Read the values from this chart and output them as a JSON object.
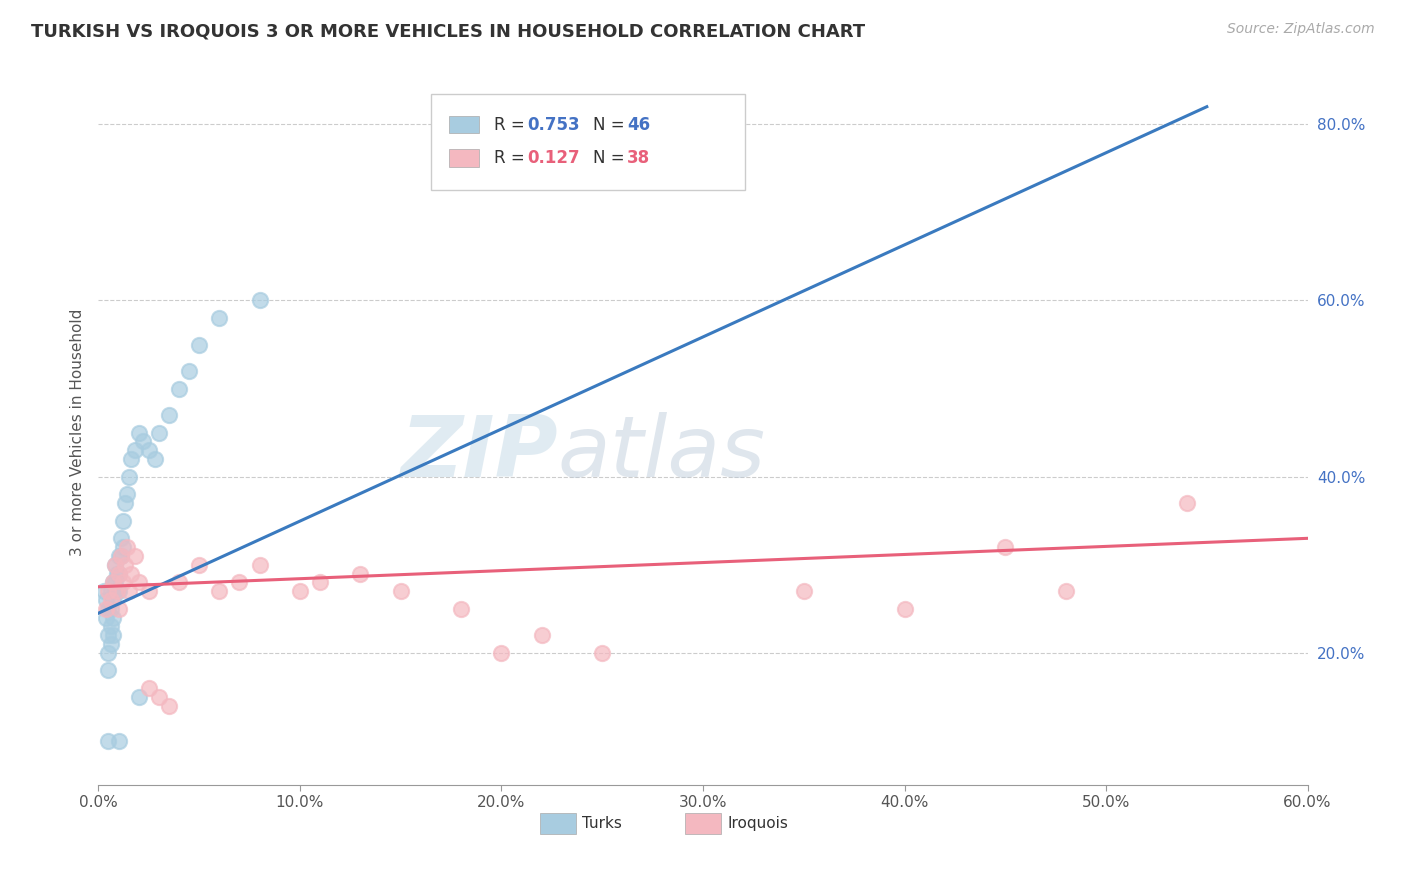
{
  "title": "TURKISH VS IROQUOIS 3 OR MORE VEHICLES IN HOUSEHOLD CORRELATION CHART",
  "source": "Source: ZipAtlas.com",
  "xlim": [
    0.0,
    0.6
  ],
  "ylim": [
    0.05,
    0.85
  ],
  "xlabel_ticks": [
    0.0,
    0.1,
    0.2,
    0.3,
    0.4,
    0.5,
    0.6
  ],
  "xlabel_labels": [
    "0.0%",
    "10.0%",
    "20.0%",
    "30.0%",
    "40.0%",
    "50.0%",
    "60.0%"
  ],
  "ylabel_ticks": [
    0.2,
    0.4,
    0.6,
    0.8
  ],
  "ylabel_labels": [
    "20.0%",
    "40.0%",
    "60.0%",
    "80.0%"
  ],
  "ylabel": "3 or more Vehicles in Household",
  "turks_color": "#a8cce0",
  "iroquois_color": "#f4b8c0",
  "turks_line_color": "#3a7abf",
  "iroquois_line_color": "#e8607a",
  "legend_r1": "0.753",
  "legend_n1": "46",
  "legend_r2": "0.127",
  "legend_n2": "38",
  "legend_val_color1": "#4472c4",
  "legend_val_color2": "#e8607a",
  "watermark_zip": "ZIP",
  "watermark_atlas": "atlas",
  "turks_scatter": [
    [
      0.003,
      0.27
    ],
    [
      0.004,
      0.24
    ],
    [
      0.004,
      0.26
    ],
    [
      0.005,
      0.25
    ],
    [
      0.005,
      0.22
    ],
    [
      0.005,
      0.2
    ],
    [
      0.005,
      0.18
    ],
    [
      0.006,
      0.27
    ],
    [
      0.006,
      0.25
    ],
    [
      0.006,
      0.23
    ],
    [
      0.006,
      0.21
    ],
    [
      0.007,
      0.28
    ],
    [
      0.007,
      0.26
    ],
    [
      0.007,
      0.24
    ],
    [
      0.007,
      0.22
    ],
    [
      0.008,
      0.3
    ],
    [
      0.008,
      0.28
    ],
    [
      0.008,
      0.27
    ],
    [
      0.009,
      0.29
    ],
    [
      0.009,
      0.27
    ],
    [
      0.01,
      0.31
    ],
    [
      0.01,
      0.29
    ],
    [
      0.01,
      0.27
    ],
    [
      0.011,
      0.33
    ],
    [
      0.011,
      0.31
    ],
    [
      0.012,
      0.35
    ],
    [
      0.012,
      0.32
    ],
    [
      0.013,
      0.37
    ],
    [
      0.014,
      0.38
    ],
    [
      0.015,
      0.4
    ],
    [
      0.016,
      0.42
    ],
    [
      0.018,
      0.43
    ],
    [
      0.02,
      0.45
    ],
    [
      0.022,
      0.44
    ],
    [
      0.025,
      0.43
    ],
    [
      0.028,
      0.42
    ],
    [
      0.03,
      0.45
    ],
    [
      0.035,
      0.47
    ],
    [
      0.04,
      0.5
    ],
    [
      0.045,
      0.52
    ],
    [
      0.05,
      0.55
    ],
    [
      0.06,
      0.58
    ],
    [
      0.08,
      0.6
    ],
    [
      0.01,
      0.1
    ],
    [
      0.005,
      0.1
    ],
    [
      0.02,
      0.15
    ]
  ],
  "iroquois_scatter": [
    [
      0.004,
      0.25
    ],
    [
      0.005,
      0.27
    ],
    [
      0.006,
      0.26
    ],
    [
      0.007,
      0.28
    ],
    [
      0.008,
      0.3
    ],
    [
      0.009,
      0.27
    ],
    [
      0.01,
      0.29
    ],
    [
      0.01,
      0.25
    ],
    [
      0.011,
      0.31
    ],
    [
      0.012,
      0.28
    ],
    [
      0.013,
      0.3
    ],
    [
      0.014,
      0.32
    ],
    [
      0.015,
      0.27
    ],
    [
      0.016,
      0.29
    ],
    [
      0.018,
      0.31
    ],
    [
      0.02,
      0.28
    ],
    [
      0.025,
      0.27
    ],
    [
      0.025,
      0.16
    ],
    [
      0.03,
      0.15
    ],
    [
      0.035,
      0.14
    ],
    [
      0.04,
      0.28
    ],
    [
      0.05,
      0.3
    ],
    [
      0.06,
      0.27
    ],
    [
      0.07,
      0.28
    ],
    [
      0.08,
      0.3
    ],
    [
      0.1,
      0.27
    ],
    [
      0.11,
      0.28
    ],
    [
      0.13,
      0.29
    ],
    [
      0.15,
      0.27
    ],
    [
      0.18,
      0.25
    ],
    [
      0.2,
      0.2
    ],
    [
      0.22,
      0.22
    ],
    [
      0.25,
      0.2
    ],
    [
      0.35,
      0.27
    ],
    [
      0.4,
      0.25
    ],
    [
      0.45,
      0.32
    ],
    [
      0.48,
      0.27
    ],
    [
      0.54,
      0.37
    ]
  ],
  "turks_line": [
    [
      0.0,
      0.245
    ],
    [
      0.55,
      0.82
    ]
  ],
  "iroquois_line": [
    [
      0.0,
      0.275
    ],
    [
      0.6,
      0.33
    ]
  ]
}
